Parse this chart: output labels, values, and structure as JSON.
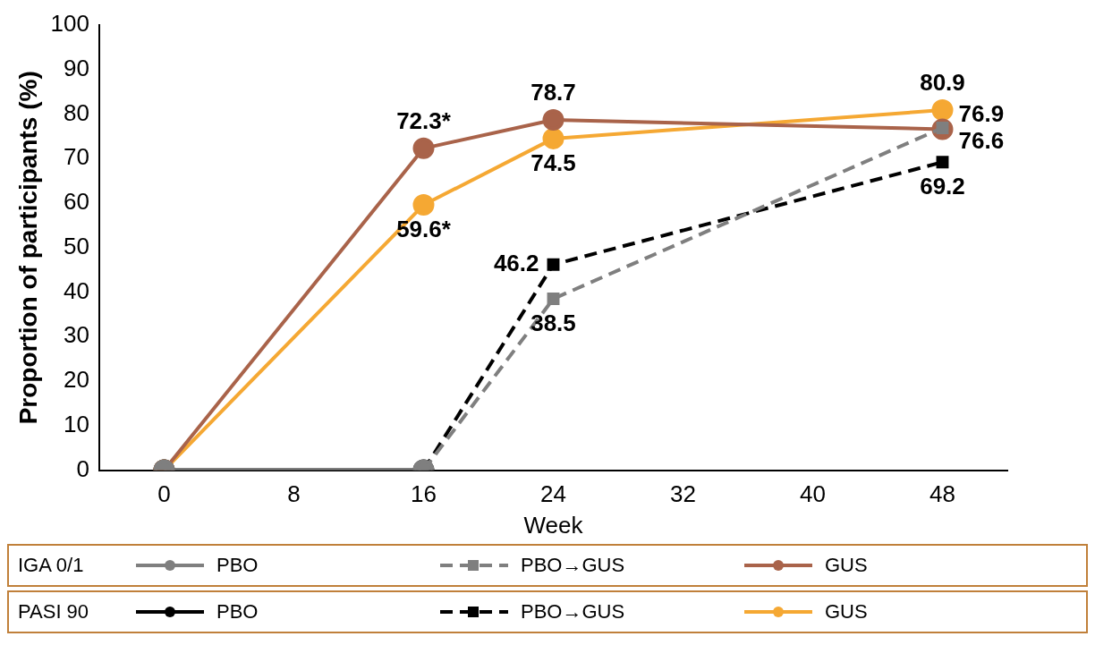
{
  "chart_data": {
    "type": "line",
    "xlabel": "Week",
    "ylabel": "Proportion of participants (%)",
    "categories": [
      "0",
      "8",
      "16",
      "24",
      "32",
      "40",
      "48"
    ],
    "ylim": [
      0,
      100
    ],
    "yticks": [
      0,
      10,
      20,
      30,
      40,
      50,
      60,
      70,
      80,
      90,
      100
    ],
    "grid": false,
    "legend": "bottom",
    "annotations": [
      "IGA 0/1",
      "PASI 90"
    ],
    "series": [
      {
        "name": "PBO",
        "color": "#7f7f7f",
        "marker": "circle",
        "line_style": "solid",
        "values": [
          0,
          null,
          0,
          null,
          null,
          null,
          null
        ]
      },
      {
        "name": "PBO→GUS",
        "color": "#7f7f7f",
        "marker": "square",
        "line_style": "dashed",
        "values": [
          null,
          null,
          0,
          38.5,
          null,
          null,
          76.9
        ],
        "value_labels": [
          null,
          null,
          null,
          "38.5",
          null,
          null,
          "76.9"
        ]
      },
      {
        "name": "GUS",
        "color": "#a9634a",
        "marker": "circle",
        "line_style": "solid",
        "values": [
          0,
          null,
          72.3,
          78.7,
          null,
          null,
          76.6
        ],
        "value_labels": [
          null,
          null,
          "72.3*",
          "78.7",
          null,
          null,
          "76.6"
        ]
      },
      {
        "name": "PBO",
        "color": "#000000",
        "marker": "circle",
        "line_style": "solid",
        "values": [
          0,
          null,
          0,
          null,
          null,
          null,
          null
        ]
      },
      {
        "name": "PBO→GUS",
        "color": "#000000",
        "marker": "square",
        "line_style": "dashed",
        "values": [
          null,
          null,
          0,
          46.2,
          null,
          null,
          69.2
        ],
        "value_labels": [
          null,
          null,
          null,
          "46.2",
          null,
          null,
          "69.2"
        ]
      },
      {
        "name": "GUS",
        "color": "#f5a833",
        "marker": "circle",
        "line_style": "solid",
        "values": [
          0,
          null,
          59.6,
          74.5,
          null,
          null,
          80.9
        ],
        "value_labels": [
          null,
          null,
          "59.6*",
          "74.5",
          null,
          null,
          "80.9"
        ]
      }
    ]
  }
}
